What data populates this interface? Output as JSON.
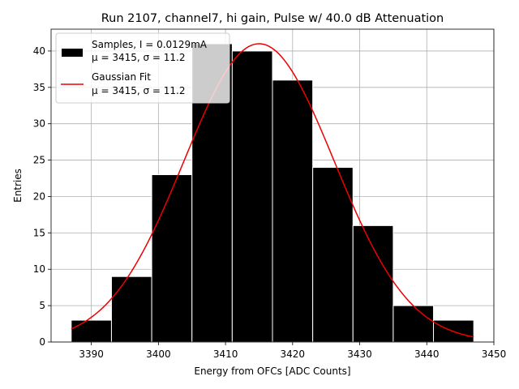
{
  "chart_data": {
    "type": "bar",
    "title": "Run 2107, channel7, hi gain, Pulse w/ 40.0 dB Attenuation",
    "xlabel": "Energy from OFCs [ADC Counts]",
    "ylabel": "Entries",
    "xlim": [
      3384,
      3450
    ],
    "ylim": [
      0,
      43
    ],
    "xticks": [
      3390,
      3400,
      3410,
      3420,
      3430,
      3440,
      3450
    ],
    "yticks": [
      0,
      5,
      10,
      15,
      20,
      25,
      30,
      35,
      40
    ],
    "grid": true,
    "legend_position": "top-left",
    "histogram": {
      "bin_edges": [
        3387,
        3393,
        3399,
        3405,
        3411,
        3417,
        3423,
        3429,
        3435,
        3441,
        3447
      ],
      "values": [
        3,
        9,
        23,
        41,
        40,
        36,
        24,
        16,
        5,
        3
      ],
      "color": "#000000",
      "edgecolor": "#ffffff"
    },
    "fit": {
      "type": "gaussian",
      "amplitude": 41,
      "mu": 3415,
      "sigma": 11.2,
      "x_range": [
        3387,
        3447
      ],
      "color": "#ee0000"
    },
    "legend": [
      {
        "line1": "Samples, I = 0.0129mA",
        "line2": "μ = 3415, σ = 11.2"
      },
      {
        "line1": "Gaussian Fit",
        "line2": "μ = 3415, σ = 11.2"
      }
    ]
  }
}
